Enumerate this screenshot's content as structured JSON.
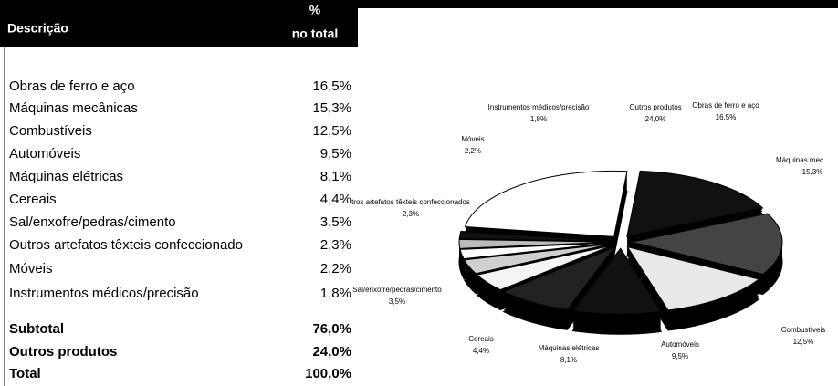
{
  "table": {
    "header": [
      "Descrição",
      "%",
      "no total"
    ],
    "rows": [
      [
        "Obras de ferro e aço",
        "16,5%"
      ],
      [
        "Máquinas mecânicas",
        "15,3%"
      ],
      [
        "Combustíveis",
        "12,5%"
      ],
      [
        "Automóveis",
        "9,5%"
      ],
      [
        "Máquinas elétricas",
        "8,1%"
      ],
      [
        "Cereais",
        "4,4%"
      ],
      [
        "Sal/enxofre/pedras/cimento",
        "3,5%"
      ],
      [
        "Outros artefatos têxteis confeccionado",
        "2,3%"
      ],
      [
        "Móveis",
        "2,2%"
      ],
      [
        "Instrumentos médicos/precisão",
        "1,8%"
      ]
    ],
    "totals": [
      [
        "Subtotal",
        "76,0%"
      ],
      [
        "Outros produtos",
        "24,0%"
      ],
      [
        "Total",
        "100,0%"
      ]
    ]
  },
  "chart_data": {
    "type": "pie",
    "categories": [
      "Obras de ferro e aço",
      "Máquinas mec",
      "Combustíveis",
      "Automóveis",
      "Máquinas elétricas",
      "Cereais",
      "Sal/enxofre/pedras/cimento",
      "tros artefatos têxteis confeccionados",
      "Móveis",
      "Instrumentos médicos/precisão",
      "Outros produtos"
    ],
    "values": [
      16.5,
      15.3,
      12.5,
      9.5,
      8.1,
      4.4,
      3.5,
      2.3,
      2.2,
      1.8,
      24.0
    ],
    "value_labels": [
      "16,5%",
      "15,3%",
      "12,5%",
      "9,5%",
      "8,1%",
      "4,4%",
      "3,5%",
      "2,3%",
      "2,2%",
      "1,8%",
      "24,0%"
    ],
    "colors": [
      "#111111",
      "#444444",
      "#e8e8e8",
      "#111111",
      "#222222",
      "#f4f4f4",
      "#d0d0d0",
      "#ffffff",
      "#bbbbbb",
      "#111111",
      "#ffffff"
    ]
  }
}
